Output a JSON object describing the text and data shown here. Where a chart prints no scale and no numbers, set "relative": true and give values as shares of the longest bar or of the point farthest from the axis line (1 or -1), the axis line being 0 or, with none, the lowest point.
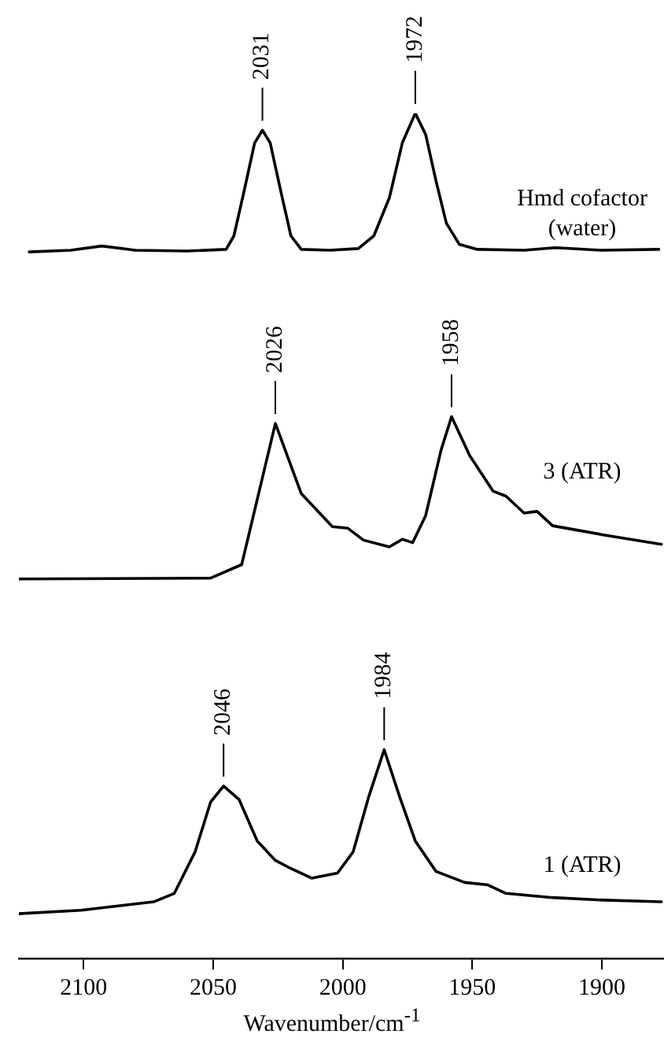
{
  "chart_data": {
    "type": "line",
    "relative": true,
    "xlabel": "Wavenumber/cm$^{-1}$",
    "xlim": [
      2125,
      1876
    ],
    "xticks": [
      2100,
      2050,
      2000,
      1950,
      1900
    ],
    "tick_labels": "x",
    "grid": false,
    "marker": "none",
    "line_style": "solid",
    "series": [
      {
        "name": "Hmd cofactor\n(water)",
        "color": "#000000",
        "x": [
          2121,
          2105,
          2093,
          2080,
          2060,
          2045,
          2042,
          2038,
          2034,
          2031,
          2028,
          2024,
          2020,
          2016,
          2005,
          1994,
          1988,
          1982,
          1977,
          1972,
          1968,
          1964,
          1960,
          1955,
          1948,
          1930,
          1918,
          1900,
          1878
        ],
        "values": [
          0.836,
          0.838,
          0.843,
          0.838,
          0.837,
          0.839,
          0.855,
          0.909,
          0.965,
          0.98,
          0.965,
          0.909,
          0.855,
          0.839,
          0.838,
          0.84,
          0.855,
          0.9,
          0.965,
          1.0,
          0.975,
          0.92,
          0.87,
          0.845,
          0.839,
          0.838,
          0.841,
          0.838,
          0.839
        ]
      },
      {
        "name": "3 (ATR)",
        "color": "#000000",
        "x": [
          2125,
          2051,
          2039,
          2032,
          2026,
          2016,
          2004,
          1998,
          1992,
          1982,
          1977,
          1973,
          1968,
          1962,
          1958,
          1951,
          1942,
          1937,
          1930,
          1925,
          1919,
          1899,
          1877
        ],
        "values": [
          0.449,
          0.45,
          0.466,
          0.556,
          0.633,
          0.55,
          0.511,
          0.509,
          0.495,
          0.487,
          0.496,
          0.492,
          0.524,
          0.602,
          0.641,
          0.595,
          0.553,
          0.547,
          0.527,
          0.529,
          0.512,
          0.501,
          0.49
        ]
      },
      {
        "name": "1 (ATR)",
        "color": "#000000",
        "x": [
          2125,
          2101,
          2073,
          2065,
          2057,
          2051,
          2046,
          2040,
          2033,
          2026,
          2021,
          2012,
          2002,
          1996,
          1990,
          1984,
          1978,
          1972,
          1964,
          1953,
          1944,
          1937,
          1919,
          1899,
          1877
        ],
        "values": [
          0.053,
          0.057,
          0.067,
          0.077,
          0.126,
          0.185,
          0.204,
          0.188,
          0.139,
          0.116,
          0.108,
          0.095,
          0.101,
          0.126,
          0.191,
          0.247,
          0.191,
          0.139,
          0.103,
          0.09,
          0.087,
          0.077,
          0.072,
          0.069,
          0.067
        ]
      }
    ],
    "annotations": [
      {
        "text": "2031",
        "x": 2031,
        "y": 0.98
      },
      {
        "text": "1972",
        "x": 1972,
        "y": 1.0
      },
      {
        "text": "2026",
        "x": 2026,
        "y": 0.633
      },
      {
        "text": "1958",
        "x": 1958,
        "y": 0.641
      },
      {
        "text": "2046",
        "x": 2046,
        "y": 0.204
      },
      {
        "text": "1984",
        "x": 1984,
        "y": 0.247
      }
    ]
  }
}
